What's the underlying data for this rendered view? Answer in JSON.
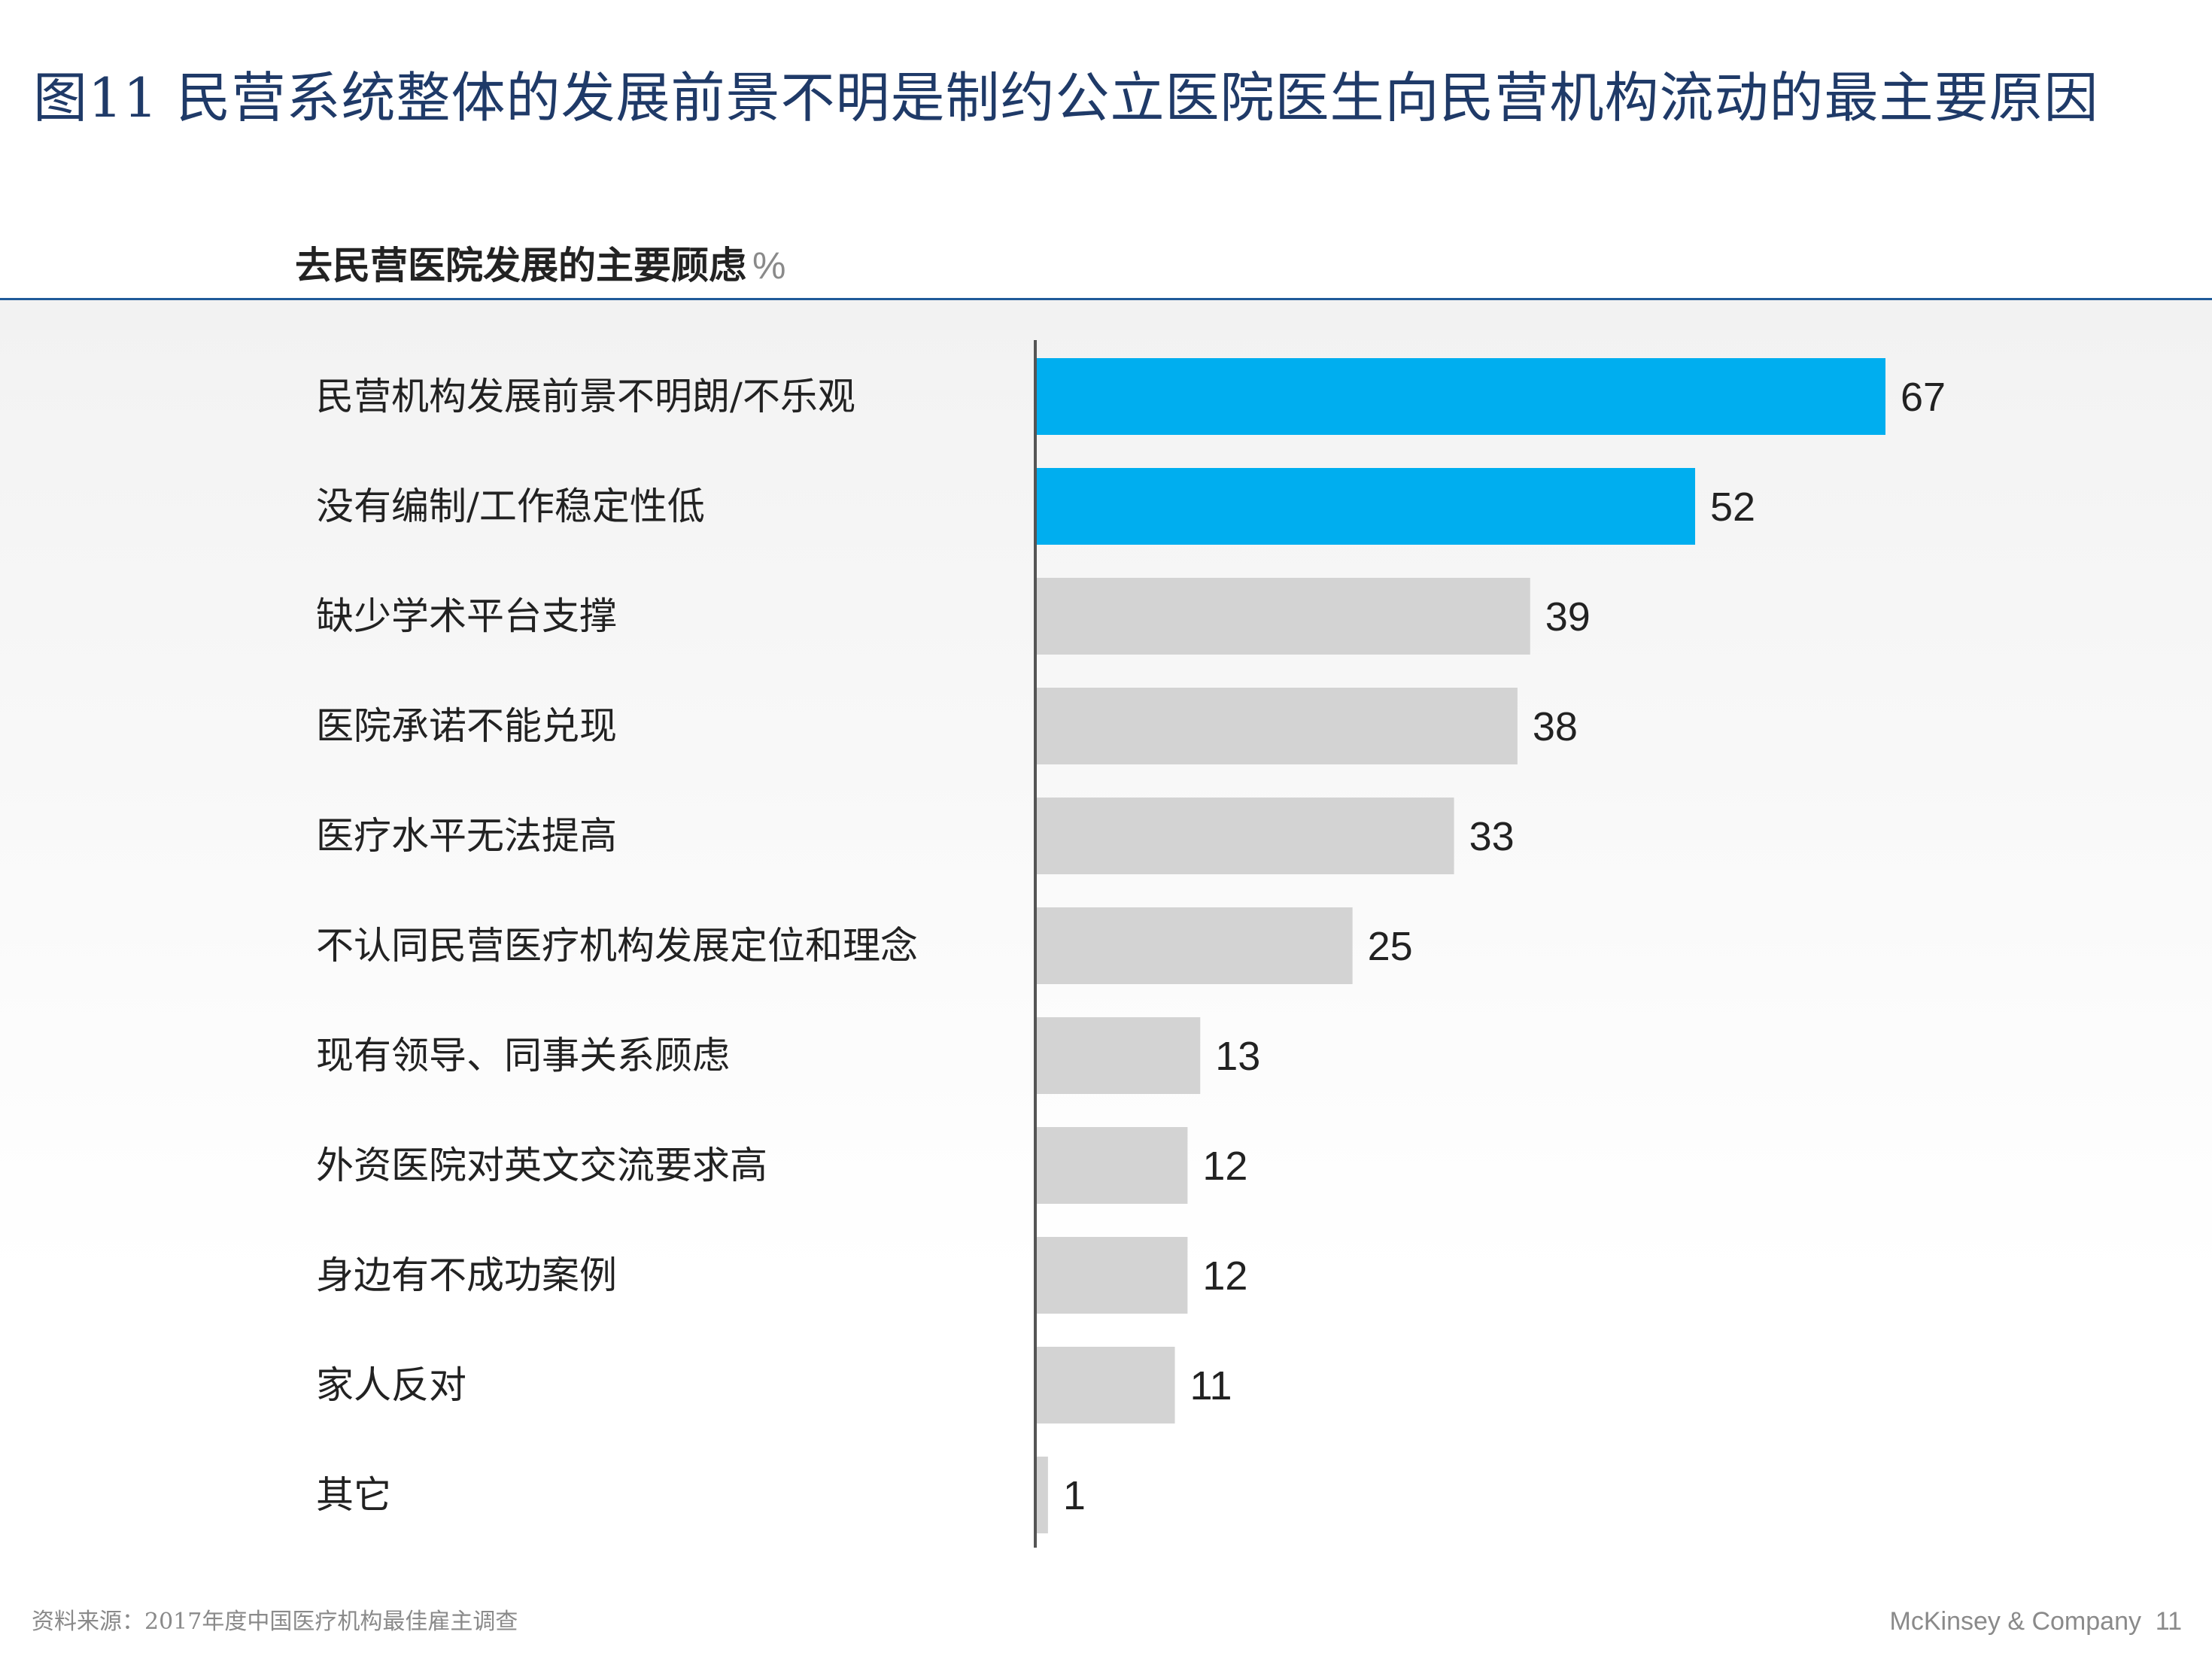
{
  "slide": {
    "title": "图11 民营系统整体的发展前景不明是制约公立医院医生向民营机构流动的最主要原因",
    "source": "资料来源：2017年度中国医疗机构最佳雇主调查",
    "brand": "McKinsey & Company",
    "page_number": "11"
  },
  "chart_data": {
    "type": "bar",
    "orientation": "horizontal",
    "title": "去民营医院发展的主要顾虑",
    "unit": "%",
    "categories": [
      "民营机构发展前景不明朗/不乐观",
      "没有编制/工作稳定性低",
      "缺少学术平台支撑",
      "医院承诺不能兑现",
      "医疗水平无法提高",
      "不认同民营医疗机构发展定位和理念",
      "现有领导、同事关系顾虑",
      "外资医院对英文交流要求高",
      "身边有不成功案例",
      "家人反对",
      "其它"
    ],
    "values": [
      67,
      52,
      39,
      38,
      33,
      25,
      13,
      12,
      12,
      11,
      1
    ],
    "highlight_count": 2,
    "xlim": [
      0,
      67
    ],
    "colors": {
      "highlight": "#00aeef",
      "default": "#d3d3d3",
      "axis": "#555555"
    },
    "grid": false,
    "legend": "none"
  }
}
